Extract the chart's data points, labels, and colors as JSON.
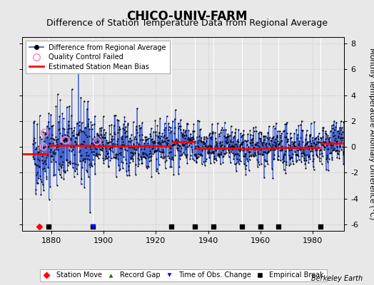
{
  "title": "CHICO-UNIV-FARM",
  "subtitle": "Difference of Station Temperature Data from Regional Average",
  "ylabel": "Monthly Temperature Anomaly Difference (°C)",
  "xlim": [
    1869,
    1992
  ],
  "ylim": [
    -6.5,
    8.5
  ],
  "yticks": [
    -6,
    -4,
    -2,
    0,
    2,
    4,
    6,
    8
  ],
  "xticks": [
    1880,
    1900,
    1920,
    1940,
    1960,
    1980
  ],
  "background_color": "#e8e8e8",
  "plot_bg_color": "#e8e8e8",
  "grid_color": "#d0d0d0",
  "line_color": "#3355cc",
  "dot_color": "black",
  "bias_color": "red",
  "title_fontsize": 12,
  "subtitle_fontsize": 9,
  "seed": 42,
  "start_year": 1873,
  "end_year": 1991,
  "station_moves": [
    1875.5
  ],
  "record_gaps": [],
  "obs_changes": [
    1896.0
  ],
  "empirical_breaks": [
    1879,
    1896,
    1926,
    1935,
    1942,
    1953,
    1960,
    1967,
    1983
  ],
  "qc_failed_indices": [
    48,
    54,
    150,
    294
  ],
  "bias_segments": [
    {
      "x_start": 1869,
      "x_end": 1879,
      "bias": -0.55
    },
    {
      "x_start": 1879,
      "x_end": 1896,
      "bias": 0.12
    },
    {
      "x_start": 1896,
      "x_end": 1926,
      "bias": 0.05
    },
    {
      "x_start": 1926,
      "x_end": 1935,
      "bias": 0.42
    },
    {
      "x_start": 1935,
      "x_end": 1942,
      "bias": -0.08
    },
    {
      "x_start": 1942,
      "x_end": 1953,
      "bias": -0.12
    },
    {
      "x_start": 1953,
      "x_end": 1960,
      "bias": -0.18
    },
    {
      "x_start": 1960,
      "x_end": 1967,
      "bias": -0.08
    },
    {
      "x_start": 1967,
      "x_end": 1983,
      "bias": -0.05
    },
    {
      "x_start": 1983,
      "x_end": 1992,
      "bias": 0.28
    }
  ]
}
